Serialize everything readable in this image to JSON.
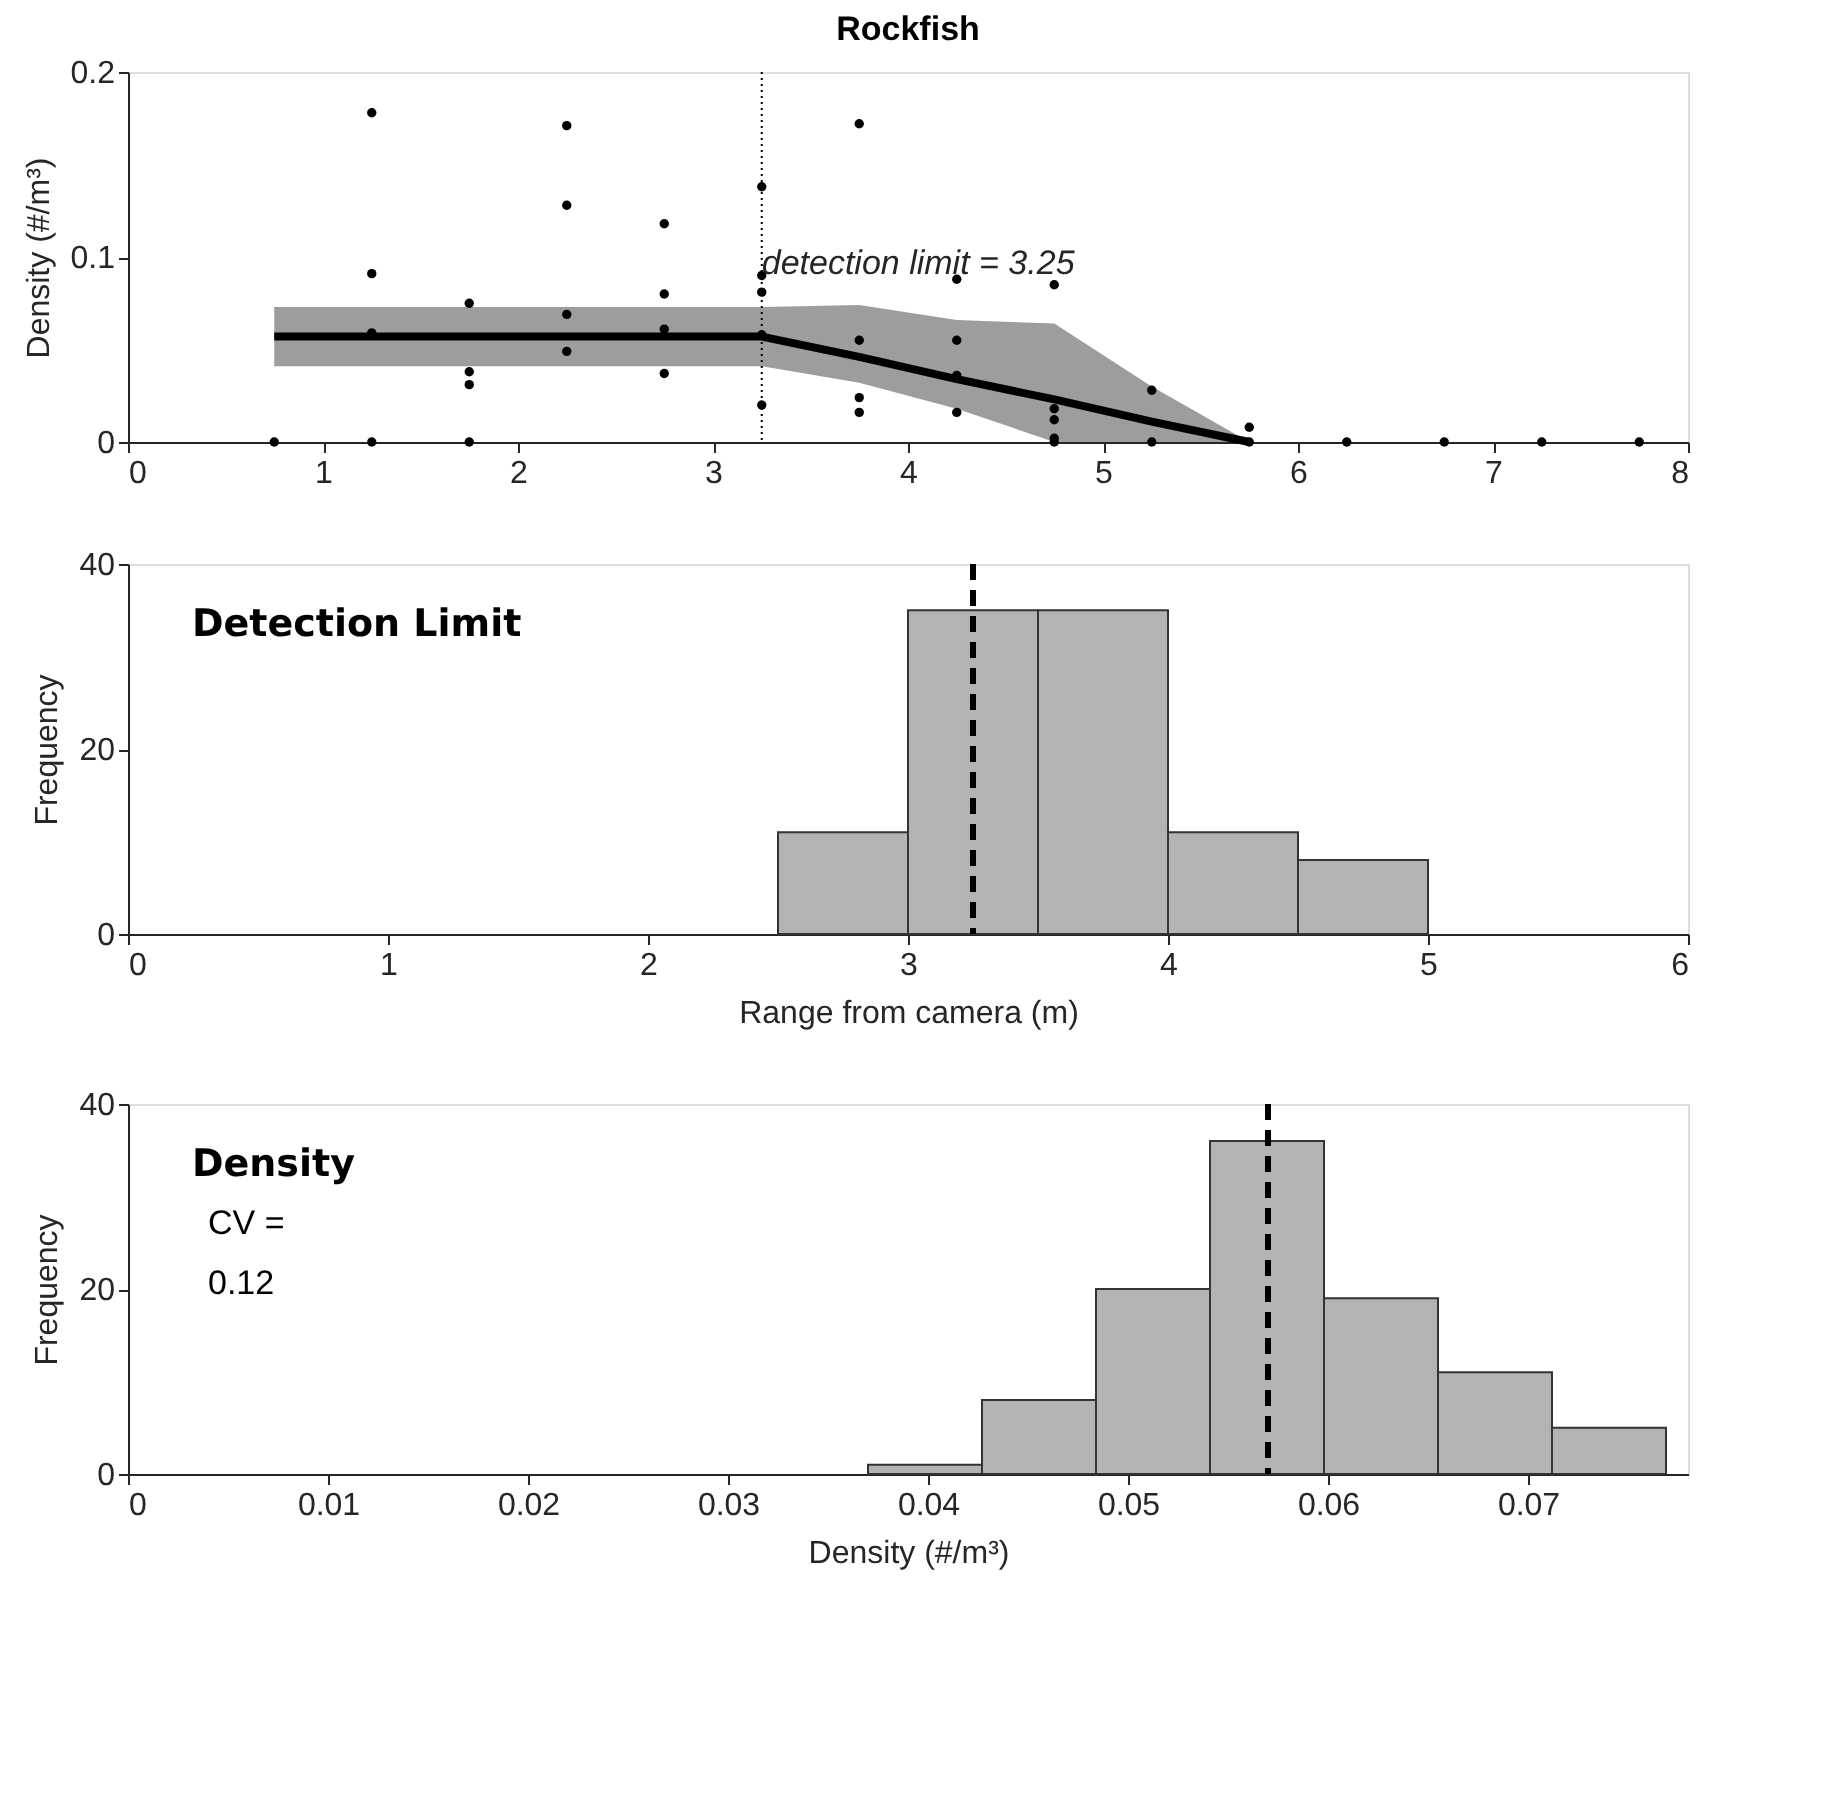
{
  "chart_data": [
    {
      "type": "scatter",
      "title": "Rockfish",
      "ylabel": "Density (#/m³)",
      "xlim": [
        0,
        8
      ],
      "xticks": [
        0,
        1,
        2,
        3,
        4,
        5,
        6,
        7,
        8
      ],
      "ylim": [
        0,
        0.2
      ],
      "yticks": [
        0,
        0.1,
        0.2
      ],
      "grid": false,
      "series": [
        {
          "type": "line",
          "color": "#000000",
          "x": [
            0.75,
            3.25,
            3.75,
            4.25,
            4.75,
            5.25,
            5.75
          ],
          "values": [
            0.057,
            0.057,
            0.046,
            0.034,
            0.023,
            0.011,
            0
          ],
          "lower": [
            0.041,
            0.041,
            0.032,
            0.018,
            0,
            0,
            0
          ],
          "upper": [
            0.073,
            0.073,
            0.074,
            0.066,
            0.064,
            0.03,
            0
          ]
        },
        {
          "type": "scatter",
          "color": "#000000",
          "marker": "circle",
          "x": [
            0.75,
            1.25,
            1.25,
            1.25,
            1.25,
            1.75,
            1.75,
            1.75,
            1.75,
            2.25,
            2.25,
            2.25,
            2.25,
            2.75,
            2.75,
            2.75,
            2.75,
            3.25,
            3.25,
            3.25,
            3.25,
            3.25,
            3.75,
            3.75,
            3.75,
            3.75,
            4.25,
            4.25,
            4.25,
            4.25,
            4.75,
            4.75,
            4.75,
            4.75,
            4.75,
            5.25,
            5.25,
            5.75,
            5.75,
            6.25,
            6.75,
            7.25,
            7.75
          ],
          "values": [
            0,
            0.178,
            0.091,
            0.059,
            0,
            0.075,
            0.038,
            0.031,
            0,
            0.171,
            0.128,
            0.069,
            0.049,
            0.118,
            0.08,
            0.061,
            0.037,
            0.138,
            0.09,
            0.081,
            0.058,
            0.02,
            0.172,
            0.055,
            0.024,
            0.016,
            0.088,
            0.055,
            0.036,
            0.016,
            0.085,
            0.018,
            0.012,
            0.002,
            0,
            0.028,
            0,
            0.008,
            0,
            0,
            0,
            0,
            0
          ]
        }
      ],
      "ref_lines": [
        {
          "axis": "x",
          "value": 3.25,
          "label": "detection limit = 3.25",
          "line_style": "dotted",
          "color": "#000000"
        }
      ]
    },
    {
      "type": "histogram",
      "xlabel": "Range from camera (m)",
      "ylabel": "Frequency",
      "xlim": [
        0,
        6
      ],
      "xticks": [
        0,
        1,
        2,
        3,
        4,
        5,
        6
      ],
      "ylim": [
        0,
        40
      ],
      "yticks": [
        0,
        20,
        40
      ],
      "grid": false,
      "color": "#b3b3b3",
      "bins": [
        2.5,
        3,
        3.5,
        4,
        4.5,
        5
      ],
      "values": [
        11,
        35,
        35,
        11,
        8
      ],
      "ref_lines": [
        {
          "axis": "x",
          "value": 3.25,
          "line_style": "dashed",
          "color": "#000000"
        }
      ],
      "annotations": [
        "Detection Limit"
      ]
    },
    {
      "type": "histogram",
      "xlabel": "Density (#/m³)",
      "ylabel": "Frequency",
      "xlim": [
        0,
        0.078
      ],
      "xticks": [
        0,
        0.01,
        0.02,
        0.03,
        0.04,
        0.05,
        0.06,
        0.07
      ],
      "ylim": [
        0,
        40
      ],
      "yticks": [
        0,
        20,
        40
      ],
      "grid": false,
      "color": "#b3b3b3",
      "bins": [
        0.037,
        0.0427,
        0.0484,
        0.0541,
        0.0598,
        0.0655,
        0.0712,
        0.0769
      ],
      "values": [
        1,
        8,
        20,
        36,
        19,
        11,
        5
      ],
      "ref_lines": [
        {
          "axis": "x",
          "value": 0.057,
          "line_style": "dashed",
          "color": "#000000"
        }
      ],
      "annotations": [
        "Density",
        "CV =",
        "0.12"
      ]
    }
  ]
}
